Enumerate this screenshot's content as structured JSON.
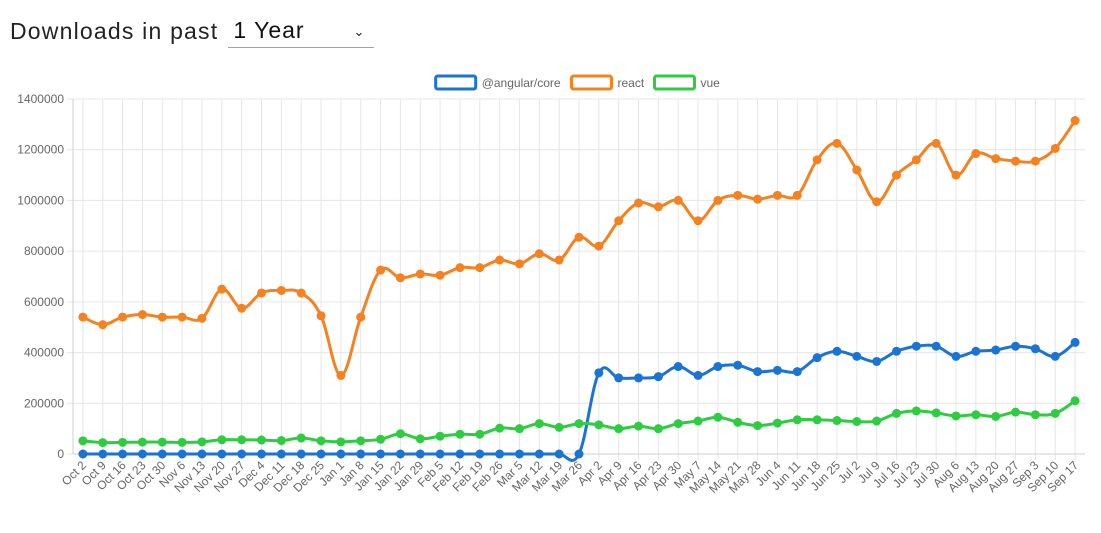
{
  "header": {
    "label": "Downloads in past",
    "period": "1 Year"
  },
  "colors": {
    "angular": "#1b73d3",
    "react": "#f58220",
    "vue": "#2ecc40",
    "grid": "#e6e6e6"
  },
  "chart_data": {
    "type": "line",
    "legend_position": "top",
    "grid": true,
    "ylim": [
      0,
      1400000
    ],
    "yticks": [
      0,
      200000,
      400000,
      600000,
      800000,
      1000000,
      1200000,
      1400000
    ],
    "categories": [
      "Oct 2",
      "Oct 9",
      "Oct 16",
      "Oct 23",
      "Oct 30",
      "Nov 6",
      "Nov 13",
      "Nov 20",
      "Nov 27",
      "Dec 4",
      "Dec 11",
      "Dec 18",
      "Dec 25",
      "Jan 1",
      "Jan 8",
      "Jan 15",
      "Jan 22",
      "Jan 29",
      "Feb 5",
      "Feb 12",
      "Feb 19",
      "Feb 26",
      "Mar 5",
      "Mar 12",
      "Mar 19",
      "Mar 26",
      "Apr 2",
      "Apr 9",
      "Apr 16",
      "Apr 23",
      "Apr 30",
      "May 7",
      "May 14",
      "May 21",
      "May 28",
      "Jun 4",
      "Jun 11",
      "Jun 18",
      "Jun 25",
      "Jul 2",
      "Jul 9",
      "Jul 16",
      "Jul 23",
      "Jul 30",
      "Aug 6",
      "Aug 13",
      "Aug 20",
      "Aug 27",
      "Sep 3",
      "Sep 10",
      "Sep 17"
    ],
    "series": [
      {
        "name": "@angular/core",
        "key": "angular",
        "values": [
          0,
          0,
          0,
          0,
          0,
          0,
          0,
          0,
          0,
          0,
          0,
          0,
          0,
          0,
          0,
          0,
          0,
          0,
          0,
          0,
          0,
          0,
          0,
          0,
          0,
          0,
          320000,
          300000,
          300000,
          305000,
          345000,
          310000,
          345000,
          350000,
          325000,
          330000,
          325000,
          380000,
          405000,
          385000,
          365000,
          405000,
          425000,
          425000,
          385000,
          405000,
          410000,
          425000,
          415000,
          385000,
          440000
        ]
      },
      {
        "name": "react",
        "key": "react",
        "values": [
          540000,
          510000,
          540000,
          550000,
          540000,
          540000,
          535000,
          650000,
          575000,
          635000,
          645000,
          635000,
          545000,
          310000,
          540000,
          725000,
          695000,
          710000,
          705000,
          735000,
          735000,
          765000,
          750000,
          790000,
          765000,
          855000,
          820000,
          920000,
          990000,
          975000,
          1000000,
          920000,
          1000000,
          1020000,
          1005000,
          1020000,
          1020000,
          1160000,
          1225000,
          1120000,
          995000,
          1100000,
          1160000,
          1225000,
          1100000,
          1185000,
          1165000,
          1155000,
          1155000,
          1205000,
          1315000
        ]
      },
      {
        "name": "vue",
        "key": "vue",
        "values": [
          52000,
          45000,
          46000,
          47000,
          47000,
          46000,
          48000,
          56000,
          56000,
          55000,
          53000,
          63000,
          52000,
          48000,
          52000,
          58000,
          80000,
          60000,
          70000,
          78000,
          78000,
          102000,
          100000,
          120000,
          105000,
          120000,
          115000,
          100000,
          110000,
          100000,
          120000,
          130000,
          145000,
          125000,
          112000,
          122000,
          135000,
          135000,
          132000,
          128000,
          130000,
          160000,
          170000,
          162000,
          150000,
          155000,
          148000,
          165000,
          155000,
          160000,
          210000
        ]
      }
    ]
  }
}
